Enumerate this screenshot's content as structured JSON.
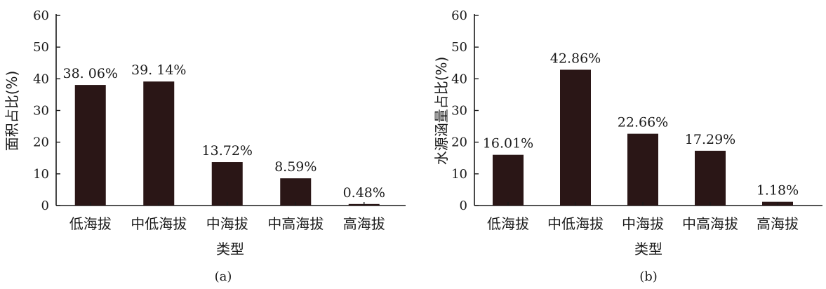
{
  "chart_data": [
    {
      "type": "bar",
      "panel_label": "(a)",
      "xlabel": "类型",
      "ylabel": "面积占比(%)",
      "ylim": [
        0,
        60
      ],
      "yticks": [
        0,
        10,
        20,
        30,
        40,
        50,
        60
      ],
      "categories": [
        "低海拔",
        "中低海拔",
        "中海拔",
        "中高海拔",
        "高海拔"
      ],
      "values": [
        38.06,
        39.14,
        13.72,
        8.59,
        0.48
      ],
      "data_labels": [
        "38. 06%",
        "39. 14%",
        "13.72%",
        "8.59%",
        "0.48%"
      ],
      "bar_color": "#2a1616",
      "grid": false
    },
    {
      "type": "bar",
      "panel_label": "(b)",
      "xlabel": "类型",
      "ylabel": "水源涵量占比(%)",
      "ylim": [
        0,
        60
      ],
      "yticks": [
        0,
        10,
        20,
        30,
        40,
        50,
        60
      ],
      "categories": [
        "低海拔",
        "中低海拔",
        "中海拔",
        "中高海拔",
        "高海拔"
      ],
      "values": [
        16.01,
        42.86,
        22.66,
        17.29,
        1.18
      ],
      "data_labels": [
        "16.01%",
        "42.86%",
        "22.66%",
        "17.29%",
        "1.18%"
      ],
      "bar_color": "#2a1616",
      "grid": false
    }
  ]
}
